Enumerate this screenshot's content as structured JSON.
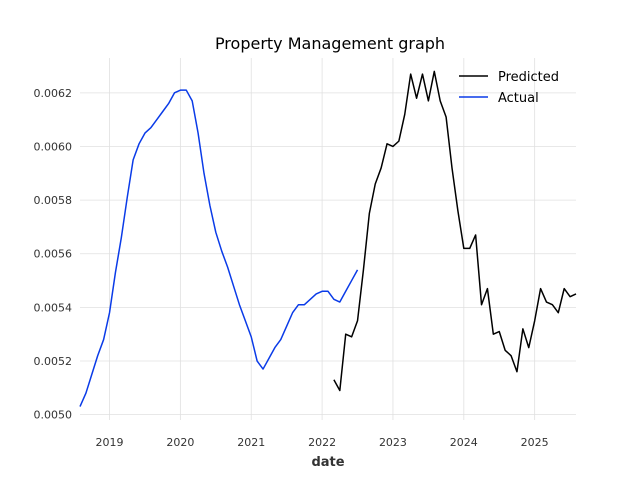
{
  "chart_data": {
    "type": "line",
    "title": "Property Management graph",
    "xlabel": "date",
    "ylabel": "",
    "xlim": [
      "2018-08",
      "2025-08"
    ],
    "ylim": [
      0.00498,
      0.00633
    ],
    "grid": true,
    "legend_position": "top-right",
    "x_ticks": [
      "2019",
      "2020",
      "2021",
      "2022",
      "2023",
      "2024",
      "2025"
    ],
    "y_ticks": [
      "0.0050",
      "0.0052",
      "0.0054",
      "0.0056",
      "0.0058",
      "0.0060",
      "0.0062"
    ],
    "series": [
      {
        "name": "Predicted",
        "color": "#000000",
        "points": [
          [
            "2022-03",
            0.00513
          ],
          [
            "2022-04",
            0.00509
          ],
          [
            "2022-05",
            0.0053
          ],
          [
            "2022-06",
            0.00529
          ],
          [
            "2022-07",
            0.00535
          ],
          [
            "2022-08",
            0.00554
          ],
          [
            "2022-09",
            0.00575
          ],
          [
            "2022-10",
            0.00586
          ],
          [
            "2022-11",
            0.00592
          ],
          [
            "2022-12",
            0.00601
          ],
          [
            "2023-01",
            0.006
          ],
          [
            "2023-02",
            0.00602
          ],
          [
            "2023-03",
            0.00612
          ],
          [
            "2023-04",
            0.00627
          ],
          [
            "2023-05",
            0.00618
          ],
          [
            "2023-06",
            0.00627
          ],
          [
            "2023-07",
            0.00617
          ],
          [
            "2023-08",
            0.00628
          ],
          [
            "2023-09",
            0.00617
          ],
          [
            "2023-10",
            0.00611
          ],
          [
            "2023-11",
            0.00592
          ],
          [
            "2023-12",
            0.00576
          ],
          [
            "2024-01",
            0.00562
          ],
          [
            "2024-02",
            0.00562
          ],
          [
            "2024-03",
            0.00567
          ],
          [
            "2024-04",
            0.00541
          ],
          [
            "2024-05",
            0.00547
          ],
          [
            "2024-06",
            0.0053
          ],
          [
            "2024-07",
            0.00531
          ],
          [
            "2024-08",
            0.00524
          ],
          [
            "2024-09",
            0.00522
          ],
          [
            "2024-10",
            0.00516
          ],
          [
            "2024-11",
            0.00532
          ],
          [
            "2024-12",
            0.00525
          ],
          [
            "2025-01",
            0.00535
          ],
          [
            "2025-02",
            0.00547
          ],
          [
            "2025-03",
            0.00542
          ],
          [
            "2025-04",
            0.00541
          ],
          [
            "2025-05",
            0.00538
          ],
          [
            "2025-06",
            0.00547
          ],
          [
            "2025-07",
            0.00544
          ],
          [
            "2025-08",
            0.00545
          ]
        ]
      },
      {
        "name": "Actual",
        "color": "#0a3be8",
        "points": [
          [
            "2018-08",
            0.00503
          ],
          [
            "2018-09",
            0.00508
          ],
          [
            "2018-10",
            0.00515
          ],
          [
            "2018-11",
            0.00522
          ],
          [
            "2018-12",
            0.00528
          ],
          [
            "2019-01",
            0.00538
          ],
          [
            "2019-02",
            0.00553
          ],
          [
            "2019-03",
            0.00566
          ],
          [
            "2019-04",
            0.00581
          ],
          [
            "2019-05",
            0.00595
          ],
          [
            "2019-06",
            0.00601
          ],
          [
            "2019-07",
            0.00605
          ],
          [
            "2019-08",
            0.00607
          ],
          [
            "2019-09",
            0.0061
          ],
          [
            "2019-10",
            0.00613
          ],
          [
            "2019-11",
            0.00616
          ],
          [
            "2019-12",
            0.0062
          ],
          [
            "2020-01",
            0.00621
          ],
          [
            "2020-02",
            0.00621
          ],
          [
            "2020-03",
            0.00617
          ],
          [
            "2020-04",
            0.00605
          ],
          [
            "2020-05",
            0.0059
          ],
          [
            "2020-06",
            0.00578
          ],
          [
            "2020-07",
            0.00568
          ],
          [
            "2020-08",
            0.00561
          ],
          [
            "2020-09",
            0.00555
          ],
          [
            "2020-10",
            0.00548
          ],
          [
            "2020-11",
            0.00541
          ],
          [
            "2020-12",
            0.00535
          ],
          [
            "2021-01",
            0.00529
          ],
          [
            "2021-02",
            0.0052
          ],
          [
            "2021-03",
            0.00517
          ],
          [
            "2021-04",
            0.00521
          ],
          [
            "2021-05",
            0.00525
          ],
          [
            "2021-06",
            0.00528
          ],
          [
            "2021-07",
            0.00533
          ],
          [
            "2021-08",
            0.00538
          ],
          [
            "2021-09",
            0.00541
          ],
          [
            "2021-10",
            0.00541
          ],
          [
            "2021-11",
            0.00543
          ],
          [
            "2021-12",
            0.00545
          ],
          [
            "2022-01",
            0.00546
          ],
          [
            "2022-02",
            0.00546
          ],
          [
            "2022-03",
            0.00543
          ],
          [
            "2022-04",
            0.00542
          ],
          [
            "2022-05",
            0.00546
          ],
          [
            "2022-06",
            0.0055
          ],
          [
            "2022-07",
            0.00554
          ]
        ]
      }
    ]
  }
}
